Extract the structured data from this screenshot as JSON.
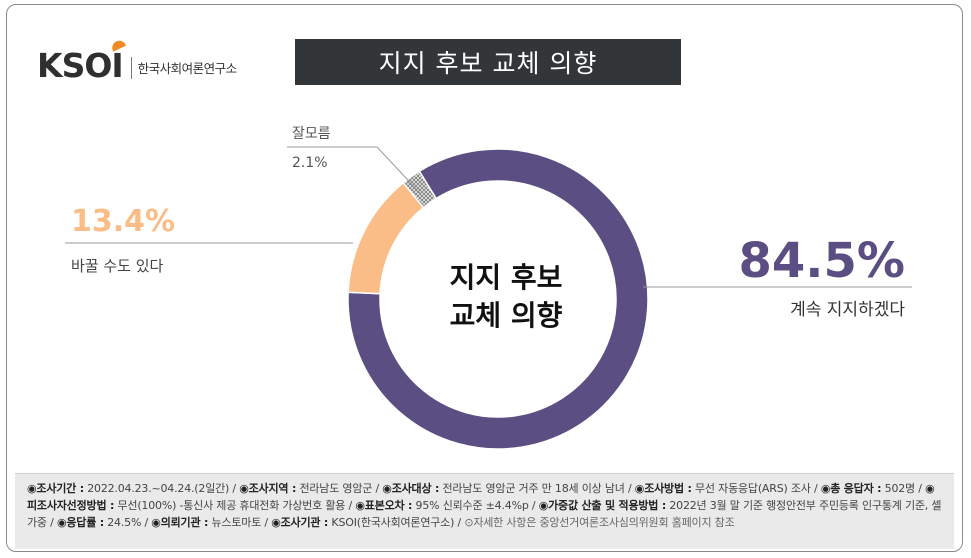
{
  "logo": {
    "mark": "KSOI",
    "name": "한국사회여론연구소"
  },
  "title": "지지 후보 교체 의향",
  "chart_data": {
    "type": "pie",
    "donut": true,
    "title": "지지 후보 교체 의향",
    "center_label": [
      "지지 후보",
      "교체 의향"
    ],
    "slices": [
      {
        "label": "계속 지지하겠다",
        "value": 84.5,
        "value_text": "84.5%",
        "color": "#5b4e82"
      },
      {
        "label": "바꿀 수도 있다",
        "value": 13.4,
        "value_text": "13.4%",
        "color": "#fbbd87"
      },
      {
        "label": "잘모름",
        "value": 2.1,
        "value_text": "2.1%",
        "color": "#b7b7b7"
      }
    ]
  },
  "footer": {
    "items": [
      {
        "key": "◉조사기간 :",
        "val": " 2022.04.23.~04.24.(2일간) / "
      },
      {
        "key": "◉조사지역 :",
        "val": " 전라남도 영암군 / "
      },
      {
        "key": "◉조사대상 :",
        "val": " 전라남도 영암군 거주 만 18세 이상 남녀 / "
      },
      {
        "key": "◉조사방법 :",
        "val": " 무선 자동응답(ARS) 조사 / "
      },
      {
        "key": "◉총 응답자 :",
        "val": " 502명 / "
      },
      {
        "key": "◉피조사자선정방법 :",
        "val": " 무선(100%) -통신사 제공 휴대전화 가상번호 활용 / "
      },
      {
        "key": "◉표본오차 :",
        "val": " 95% 신뢰수준 ±4.4%p / "
      },
      {
        "key": "◉가중값 산출 및 적용방법 :",
        "val": " 2022년 3월 말 기준 행정안전부 주민등록 인구통계 기준, 셀가중 / "
      },
      {
        "key": "◉응답률 :",
        "val": " 24.5% / "
      },
      {
        "key": "◉의뢰기관 :",
        "val": " 뉴스토마토 / "
      },
      {
        "key": "◉조사기관 :",
        "val": " KSOI(한국사회여론연구소) / "
      }
    ],
    "note": "⊙자세한 사항은 중앙선거여론조사심의위원회 홈페이지 참조"
  }
}
